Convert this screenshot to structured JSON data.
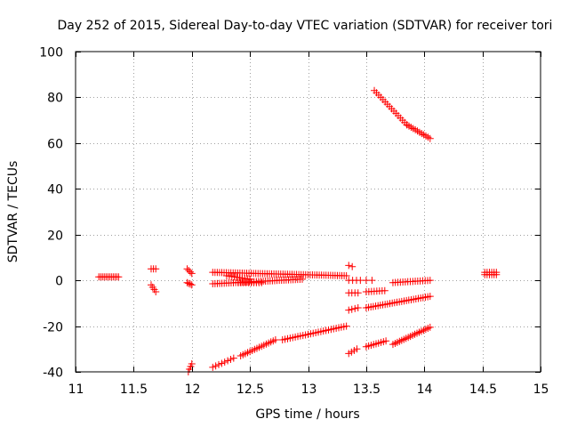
{
  "chart_data": {
    "type": "scatter",
    "title": "Day 252 of 2015, Sidereal Day-to-day VTEC variation (SDTVAR) for receiver tori",
    "xlabel": "GPS time / hours",
    "ylabel": "SDTVAR / TECUs",
    "xlim": [
      11,
      15
    ],
    "ylim": [
      -40,
      100
    ],
    "xticks": [
      "11",
      "11.5",
      "12",
      "12.5",
      "13",
      "13.5",
      "14",
      "14.5",
      "15"
    ],
    "yticks": [
      "-40",
      "-20",
      "0",
      "20",
      "40",
      "60",
      "80",
      "100"
    ],
    "grid": true,
    "marker": "plus",
    "marker_color": "#ff0000",
    "segments": [
      {
        "x0": 11.2,
        "y0": 1.5,
        "x1": 11.37,
        "y1": 1.5,
        "n": 12
      },
      {
        "x0": 11.65,
        "y0": 5.0,
        "x1": 11.69,
        "y1": 5.0,
        "n": 3
      },
      {
        "x0": 11.65,
        "y0": -2.0,
        "x1": 11.69,
        "y1": -5.0,
        "n": 4
      },
      {
        "x0": 11.96,
        "y0": 5.0,
        "x1": 12.0,
        "y1": 3.0,
        "n": 4
      },
      {
        "x0": 11.96,
        "y0": -1.0,
        "x1": 12.0,
        "y1": -2.0,
        "n": 4
      },
      {
        "x0": 11.97,
        "y0": -40.0,
        "x1": 12.0,
        "y1": -36.5,
        "n": 4
      },
      {
        "x0": 12.18,
        "y0": 3.5,
        "x1": 13.33,
        "y1": 2.0,
        "n": 60
      },
      {
        "x0": 12.18,
        "y0": -1.5,
        "x1": 12.95,
        "y1": 0.5,
        "n": 40
      },
      {
        "x0": 12.3,
        "y0": 2.0,
        "x1": 12.5,
        "y1": 0.5,
        "n": 10
      },
      {
        "x0": 12.4,
        "y0": -1.0,
        "x1": 12.6,
        "y1": -1.0,
        "n": 10
      },
      {
        "x0": 12.18,
        "y0": -38.0,
        "x1": 12.36,
        "y1": -34.0,
        "n": 8
      },
      {
        "x0": 12.42,
        "y0": -33.0,
        "x1": 12.72,
        "y1": -26.0,
        "n": 16
      },
      {
        "x0": 12.78,
        "y0": -26.0,
        "x1": 13.33,
        "y1": -20.0,
        "n": 26
      },
      {
        "x0": 13.35,
        "y0": 6.5,
        "x1": 13.38,
        "y1": 6.0,
        "n": 2
      },
      {
        "x0": 13.35,
        "y0": 0.0,
        "x1": 13.45,
        "y1": 0.0,
        "n": 4
      },
      {
        "x0": 13.35,
        "y0": -5.5,
        "x1": 13.43,
        "y1": -5.5,
        "n": 4
      },
      {
        "x0": 13.5,
        "y0": -5.0,
        "x1": 13.66,
        "y1": -4.5,
        "n": 8
      },
      {
        "x0": 13.35,
        "y0": -13.0,
        "x1": 13.43,
        "y1": -12.0,
        "n": 4
      },
      {
        "x0": 13.5,
        "y0": -12.0,
        "x1": 14.05,
        "y1": -7.0,
        "n": 28
      },
      {
        "x0": 13.35,
        "y0": -32.0,
        "x1": 13.42,
        "y1": -30.0,
        "n": 4
      },
      {
        "x0": 13.5,
        "y0": -29.0,
        "x1": 13.67,
        "y1": -26.5,
        "n": 9
      },
      {
        "x0": 13.5,
        "y0": 0.0,
        "x1": 13.55,
        "y1": 0.0,
        "n": 2
      },
      {
        "x0": 13.73,
        "y0": -1.0,
        "x1": 14.05,
        "y1": 0.0,
        "n": 16
      },
      {
        "x0": 13.73,
        "y0": -28.0,
        "x1": 14.05,
        "y1": -20.5,
        "n": 18
      },
      {
        "x0": 13.57,
        "y0": 83.0,
        "x1": 13.85,
        "y1": 68.0,
        "n": 16
      },
      {
        "x0": 13.85,
        "y0": 68.0,
        "x1": 14.05,
        "y1": 62.0,
        "n": 12
      },
      {
        "x0": 14.52,
        "y0": 3.5,
        "x1": 14.62,
        "y1": 3.5,
        "n": 6
      },
      {
        "x0": 14.52,
        "y0": 2.5,
        "x1": 14.62,
        "y1": 2.5,
        "n": 6
      }
    ]
  }
}
